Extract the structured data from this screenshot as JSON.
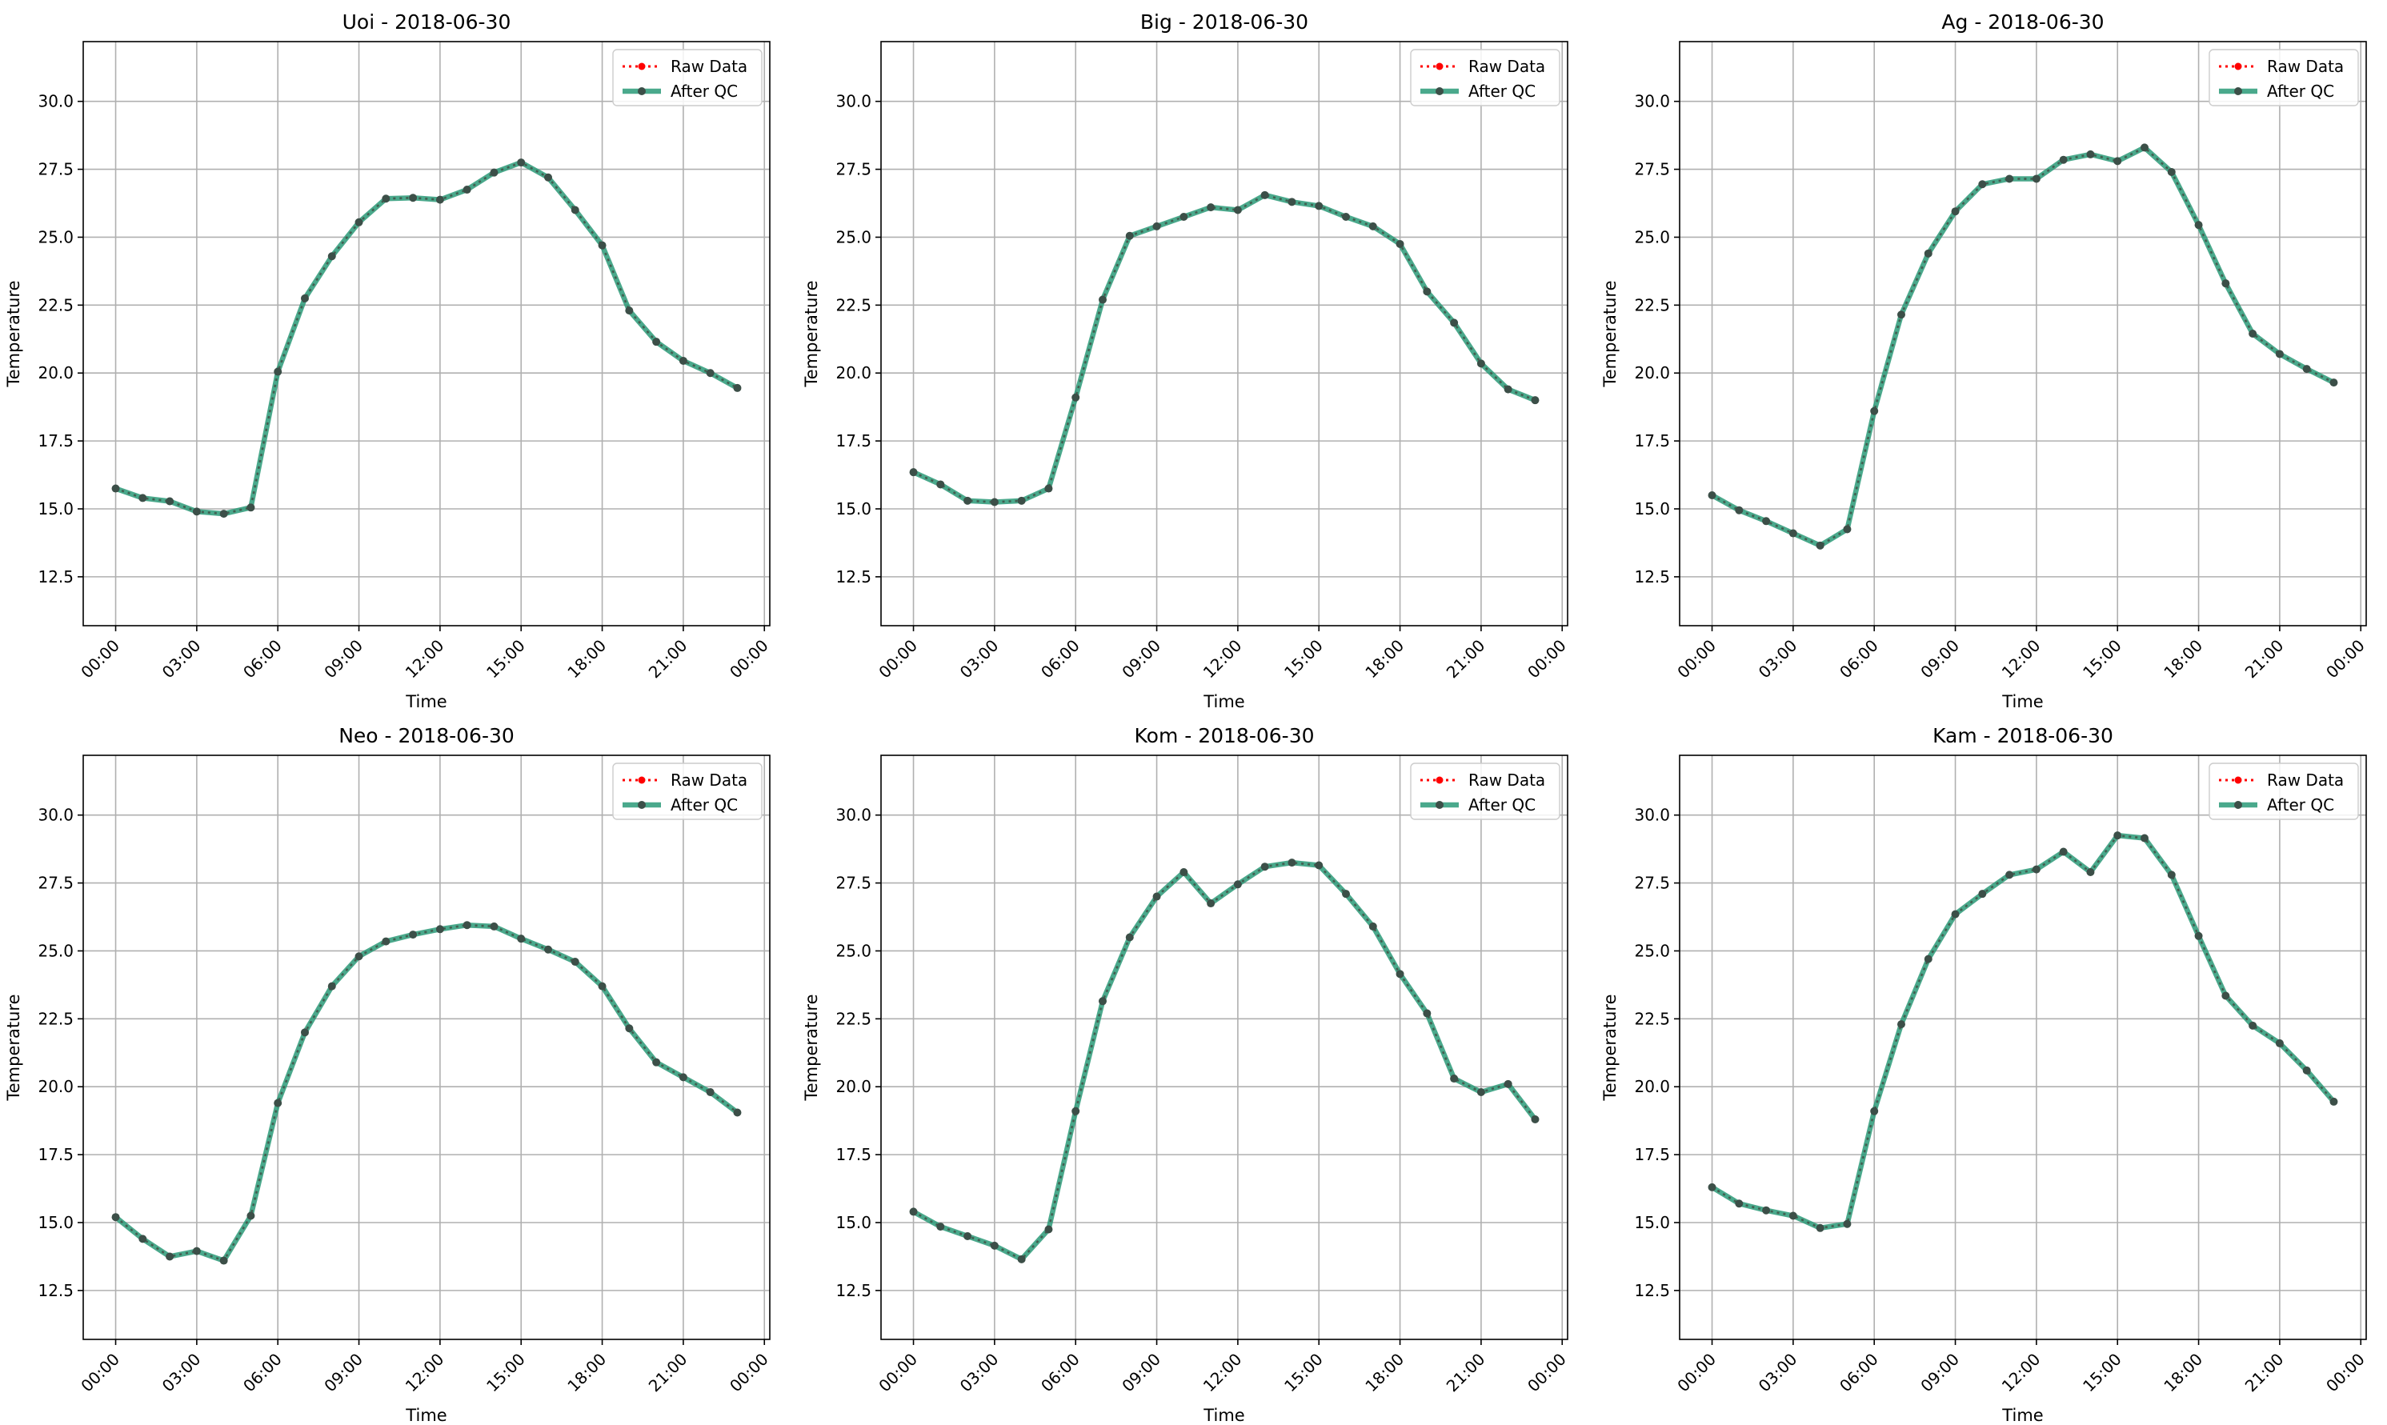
{
  "legend_labels": {
    "raw": "Raw Data",
    "qc": "After QC"
  },
  "colors": {
    "raw": "#ff0000",
    "qc": "#2a9a78",
    "marker": "#3c4f48",
    "grid": "#b0b0b0"
  },
  "chart_data": [
    {
      "type": "line",
      "title": "Uoi - 2018-06-30",
      "xlabel": "Time",
      "ylabel": "Temperature",
      "x_hours": [
        0,
        1,
        2,
        3,
        4,
        5,
        6,
        7,
        8,
        9,
        10,
        11,
        12,
        13,
        14,
        15,
        16,
        17,
        18,
        19,
        20,
        21,
        22,
        23
      ],
      "xlim_hours": [
        -1.2,
        24.2
      ],
      "ylim": [
        10.7,
        32.2
      ],
      "xticks": [
        "00:00",
        "03:00",
        "06:00",
        "09:00",
        "12:00",
        "15:00",
        "18:00",
        "21:00",
        "00:00"
      ],
      "xtick_hours": [
        0,
        3,
        6,
        9,
        12,
        15,
        18,
        21,
        24
      ],
      "yticks": [
        12.5,
        15.0,
        17.5,
        20.0,
        22.5,
        25.0,
        27.5,
        30.0
      ],
      "grid": true,
      "legend": "upper right",
      "series": [
        {
          "name": "Raw Data",
          "values": [
            15.75,
            15.4,
            15.28,
            14.9,
            14.82,
            15.05,
            20.05,
            22.75,
            24.3,
            25.55,
            26.42,
            26.45,
            26.38,
            26.75,
            27.38,
            27.75,
            27.2,
            26.0,
            24.7,
            22.3,
            21.15,
            20.45,
            20.0,
            19.45
          ]
        },
        {
          "name": "After QC",
          "values": [
            15.75,
            15.4,
            15.28,
            14.9,
            14.82,
            15.05,
            20.05,
            22.75,
            24.3,
            25.55,
            26.42,
            26.45,
            26.38,
            26.75,
            27.38,
            27.75,
            27.2,
            26.0,
            24.7,
            22.3,
            21.15,
            20.45,
            20.0,
            19.45
          ]
        }
      ]
    },
    {
      "type": "line",
      "title": "Big - 2018-06-30",
      "xlabel": "Time",
      "ylabel": "Temperature",
      "x_hours": [
        0,
        1,
        2,
        3,
        4,
        5,
        6,
        7,
        8,
        9,
        10,
        11,
        12,
        13,
        14,
        15,
        16,
        17,
        18,
        19,
        20,
        21,
        22,
        23
      ],
      "xlim_hours": [
        -1.2,
        24.2
      ],
      "ylim": [
        10.7,
        32.2
      ],
      "xticks": [
        "00:00",
        "03:00",
        "06:00",
        "09:00",
        "12:00",
        "15:00",
        "18:00",
        "21:00",
        "00:00"
      ],
      "xtick_hours": [
        0,
        3,
        6,
        9,
        12,
        15,
        18,
        21,
        24
      ],
      "yticks": [
        12.5,
        15.0,
        17.5,
        20.0,
        22.5,
        25.0,
        27.5,
        30.0
      ],
      "grid": true,
      "legend": "upper right",
      "series": [
        {
          "name": "Raw Data",
          "values": [
            16.35,
            15.9,
            15.3,
            15.25,
            15.3,
            15.75,
            19.1,
            22.7,
            25.05,
            25.4,
            25.75,
            26.1,
            26.0,
            26.55,
            26.3,
            26.15,
            25.75,
            25.4,
            24.75,
            23.0,
            21.85,
            20.35,
            19.4,
            19.0
          ]
        },
        {
          "name": "After QC",
          "values": [
            16.35,
            15.9,
            15.3,
            15.25,
            15.3,
            15.75,
            19.1,
            22.7,
            25.05,
            25.4,
            25.75,
            26.1,
            26.0,
            26.55,
            26.3,
            26.15,
            25.75,
            25.4,
            24.75,
            23.0,
            21.85,
            20.35,
            19.4,
            19.0
          ]
        }
      ]
    },
    {
      "type": "line",
      "title": "Ag - 2018-06-30",
      "xlabel": "Time",
      "ylabel": "Temperature",
      "x_hours": [
        0,
        1,
        2,
        3,
        4,
        5,
        6,
        7,
        8,
        9,
        10,
        11,
        12,
        13,
        14,
        15,
        16,
        17,
        18,
        19,
        20,
        21,
        22,
        23
      ],
      "xlim_hours": [
        -1.2,
        24.2
      ],
      "ylim": [
        10.7,
        32.2
      ],
      "xticks": [
        "00:00",
        "03:00",
        "06:00",
        "09:00",
        "12:00",
        "15:00",
        "18:00",
        "21:00",
        "00:00"
      ],
      "xtick_hours": [
        0,
        3,
        6,
        9,
        12,
        15,
        18,
        21,
        24
      ],
      "yticks": [
        12.5,
        15.0,
        17.5,
        20.0,
        22.5,
        25.0,
        27.5,
        30.0
      ],
      "grid": true,
      "legend": "upper right",
      "series": [
        {
          "name": "Raw Data",
          "values": [
            15.5,
            14.95,
            14.55,
            14.1,
            13.65,
            14.25,
            18.6,
            22.15,
            24.4,
            25.95,
            26.95,
            27.15,
            27.15,
            27.85,
            28.05,
            27.8,
            28.3,
            27.4,
            25.45,
            23.3,
            21.45,
            20.7,
            20.15,
            19.65
          ]
        },
        {
          "name": "After QC",
          "values": [
            15.5,
            14.95,
            14.55,
            14.1,
            13.65,
            14.25,
            18.6,
            22.15,
            24.4,
            25.95,
            26.95,
            27.15,
            27.15,
            27.85,
            28.05,
            27.8,
            28.3,
            27.4,
            25.45,
            23.3,
            21.45,
            20.7,
            20.15,
            19.65
          ]
        }
      ]
    },
    {
      "type": "line",
      "title": "Neo - 2018-06-30",
      "xlabel": "Time",
      "ylabel": "Temperature",
      "x_hours": [
        0,
        1,
        2,
        3,
        4,
        5,
        6,
        7,
        8,
        9,
        10,
        11,
        12,
        13,
        14,
        15,
        16,
        17,
        18,
        19,
        20,
        21,
        22,
        23
      ],
      "xlim_hours": [
        -1.2,
        24.2
      ],
      "ylim": [
        10.7,
        32.2
      ],
      "xticks": [
        "00:00",
        "03:00",
        "06:00",
        "09:00",
        "12:00",
        "15:00",
        "18:00",
        "21:00",
        "00:00"
      ],
      "xtick_hours": [
        0,
        3,
        6,
        9,
        12,
        15,
        18,
        21,
        24
      ],
      "yticks": [
        12.5,
        15.0,
        17.5,
        20.0,
        22.5,
        25.0,
        27.5,
        30.0
      ],
      "grid": true,
      "legend": "upper right",
      "series": [
        {
          "name": "Raw Data",
          "values": [
            15.2,
            14.4,
            13.75,
            13.95,
            13.6,
            15.25,
            19.4,
            22.0,
            23.7,
            24.8,
            25.35,
            25.6,
            25.8,
            25.95,
            25.9,
            25.45,
            25.05,
            24.6,
            23.7,
            22.15,
            20.9,
            20.35,
            19.8,
            19.05
          ]
        },
        {
          "name": "After QC",
          "values": [
            15.2,
            14.4,
            13.75,
            13.95,
            13.6,
            15.25,
            19.4,
            22.0,
            23.7,
            24.8,
            25.35,
            25.6,
            25.8,
            25.95,
            25.9,
            25.45,
            25.05,
            24.6,
            23.7,
            22.15,
            20.9,
            20.35,
            19.8,
            19.05
          ]
        }
      ]
    },
    {
      "type": "line",
      "title": "Kom - 2018-06-30",
      "xlabel": "Time",
      "ylabel": "Temperature",
      "x_hours": [
        0,
        1,
        2,
        3,
        4,
        5,
        6,
        7,
        8,
        9,
        10,
        11,
        12,
        13,
        14,
        15,
        16,
        17,
        18,
        19,
        20,
        21,
        22,
        23
      ],
      "xlim_hours": [
        -1.2,
        24.2
      ],
      "ylim": [
        10.7,
        32.2
      ],
      "xticks": [
        "00:00",
        "03:00",
        "06:00",
        "09:00",
        "12:00",
        "15:00",
        "18:00",
        "21:00",
        "00:00"
      ],
      "xtick_hours": [
        0,
        3,
        6,
        9,
        12,
        15,
        18,
        21,
        24
      ],
      "yticks": [
        12.5,
        15.0,
        17.5,
        20.0,
        22.5,
        25.0,
        27.5,
        30.0
      ],
      "grid": true,
      "legend": "upper right",
      "series": [
        {
          "name": "Raw Data",
          "values": [
            15.4,
            14.85,
            14.5,
            14.15,
            13.65,
            14.75,
            19.1,
            23.15,
            25.5,
            27.0,
            27.9,
            26.75,
            27.45,
            28.1,
            28.25,
            28.15,
            27.1,
            25.9,
            24.15,
            22.7,
            20.3,
            19.8,
            20.1,
            18.8
          ]
        },
        {
          "name": "After QC",
          "values": [
            15.4,
            14.85,
            14.5,
            14.15,
            13.65,
            14.75,
            19.1,
            23.15,
            25.5,
            27.0,
            27.9,
            26.75,
            27.45,
            28.1,
            28.25,
            28.15,
            27.1,
            25.9,
            24.15,
            22.7,
            20.3,
            19.8,
            20.1,
            18.8
          ]
        }
      ]
    },
    {
      "type": "line",
      "title": "Kam - 2018-06-30",
      "xlabel": "Time",
      "ylabel": "Temperature",
      "x_hours": [
        0,
        1,
        2,
        3,
        4,
        5,
        6,
        7,
        8,
        9,
        10,
        11,
        12,
        13,
        14,
        15,
        16,
        17,
        18,
        19,
        20,
        21,
        22,
        23
      ],
      "xlim_hours": [
        -1.2,
        24.2
      ],
      "ylim": [
        10.7,
        32.2
      ],
      "xticks": [
        "00:00",
        "03:00",
        "06:00",
        "09:00",
        "12:00",
        "15:00",
        "18:00",
        "21:00",
        "00:00"
      ],
      "xtick_hours": [
        0,
        3,
        6,
        9,
        12,
        15,
        18,
        21,
        24
      ],
      "yticks": [
        12.5,
        15.0,
        17.5,
        20.0,
        22.5,
        25.0,
        27.5,
        30.0
      ],
      "grid": true,
      "legend": "upper right",
      "series": [
        {
          "name": "Raw Data",
          "values": [
            16.3,
            15.7,
            15.45,
            15.25,
            14.8,
            14.95,
            19.1,
            22.3,
            24.7,
            26.35,
            27.1,
            27.8,
            28.0,
            28.65,
            27.9,
            29.25,
            29.15,
            27.8,
            25.55,
            23.35,
            22.25,
            21.6,
            20.6,
            19.45
          ]
        },
        {
          "name": "After QC",
          "values": [
            16.3,
            15.7,
            15.45,
            15.25,
            14.8,
            14.95,
            19.1,
            22.3,
            24.7,
            26.35,
            27.1,
            27.8,
            28.0,
            28.65,
            27.9,
            29.25,
            29.15,
            27.8,
            25.55,
            23.35,
            22.25,
            21.6,
            20.6,
            19.45
          ]
        }
      ]
    }
  ]
}
